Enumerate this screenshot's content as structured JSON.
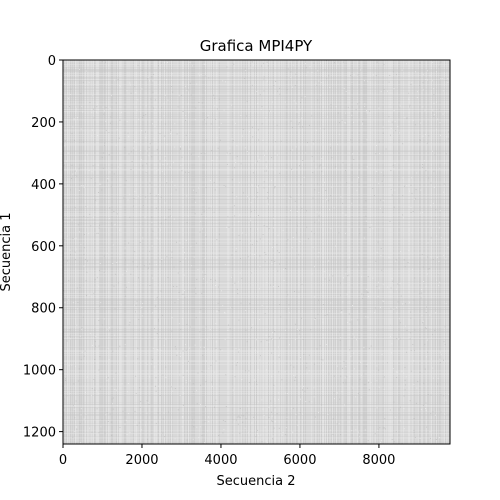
{
  "chart_data": {
    "type": "heatmap",
    "title": "Grafica MPI4PY",
    "xlabel": "Secuencia 2",
    "ylabel": "Secuencia 1",
    "xlim": [
      0,
      9800
    ],
    "ylim": [
      1240,
      0
    ],
    "xticks": [
      0,
      2000,
      4000,
      6000,
      8000
    ],
    "yticks": [
      0,
      200,
      400,
      600,
      800,
      1000,
      1200
    ],
    "colormap": "gray",
    "grid": false,
    "legend": "none"
  },
  "colors": {
    "background": "#ffffff",
    "heatmap_base": "#d9d9d9",
    "heatmap_light": "#ececec",
    "heatmap_dark": "#c4c4c4",
    "axis": "#000000"
  }
}
